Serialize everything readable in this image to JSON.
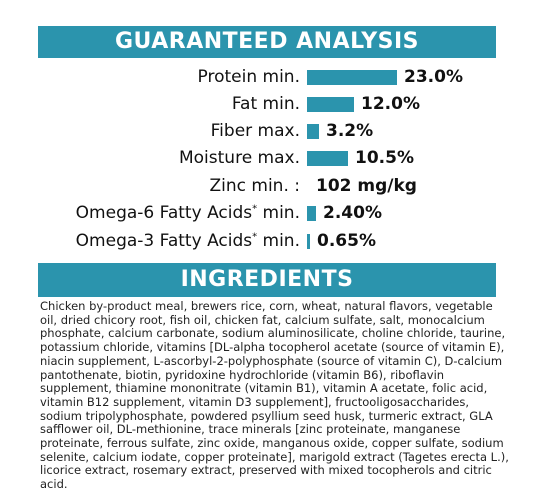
{
  "guaranteed_analysis": {
    "title": "GUARANTEED ANALYSIS",
    "items": [
      {
        "label": "Protein min.",
        "value": "23.0%",
        "level_percent": 23.0
      },
      {
        "label": "Fat min.",
        "value": "12.0%",
        "level_percent": 12.0
      },
      {
        "label": "Fiber max.",
        "value": "3.2%",
        "level_percent": 3.2
      },
      {
        "label": "Moisture max.",
        "value": "10.5%",
        "level_percent": 10.5
      },
      {
        "label": "Zinc min. :",
        "value": "102 mg/kg"
      },
      {
        "label": "Omega-6 Fatty Acids",
        "sup": "*",
        "suffix": " min.",
        "value": "2.40%",
        "level_percent": 2.4
      },
      {
        "label": "Omega-3 Fatty Acids",
        "sup": "*",
        "suffix": " min.",
        "value": "0.65%",
        "level_percent": 0.65
      }
    ]
  },
  "ingredients": {
    "title": "INGREDIENTS",
    "text": "Chicken by-product meal, brewers rice, corn, wheat, natural flavors, vegetable oil, dried chicory root, fish oil, chicken fat, calcium sulfate, salt, monocalcium phosphate, calcium carbonate, sodium aluminosilicate, choline chloride, taurine, potassium chloride, vitamins [DL-alpha tocopherol acetate (source of vitamin E), niacin supplement, L-ascorbyl-2-polyphosphate (source of vitamin C), D-calcium pantothenate, biotin, pyridoxine hydrochloride (vitamin B6), riboflavin supplement, thiamine mononitrate (vitamin B1), vitamin A acetate, folic acid, vitamin B12 supplement, vitamin D3 supplement], fructooligosaccharides, sodium tripolyphosphate, powdered psyllium seed husk, turmeric extract, GLA safflower oil, DL-methionine, trace minerals [zinc proteinate, manganese proteinate, ferrous sulfate, zinc oxide, manganous oxide, copper sulfate, sodium selenite, calcium iodate, copper proteinate], marigold extract (Tagetes erecta L.), licorice extract, rosemary extract, preserved with mixed tocopherols and citric acid."
  },
  "colors": {
    "accent": "#2b94ad"
  }
}
